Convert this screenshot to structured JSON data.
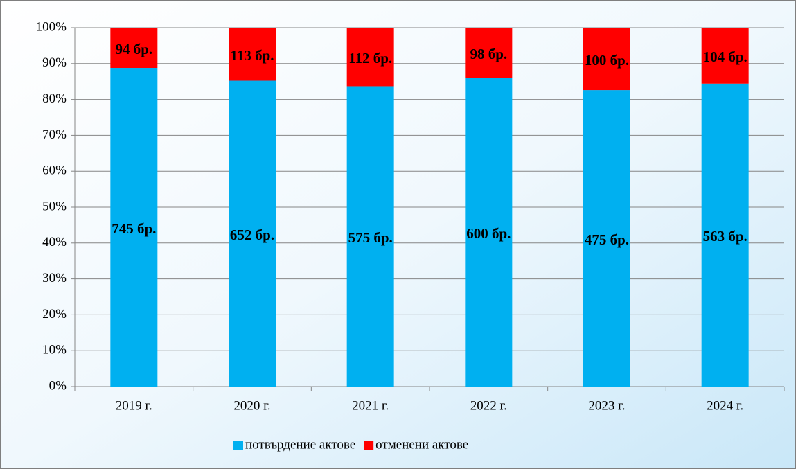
{
  "chart_data": {
    "type": "bar",
    "stacked": "percent",
    "categories": [
      "2019 г.",
      "2020 г.",
      "2021 г.",
      "2022 г.",
      "2023 г.",
      "2024 г."
    ],
    "series": [
      {
        "name": "потвърдение актове",
        "color": "#00b0f0",
        "values": [
          745,
          652,
          575,
          600,
          475,
          563
        ],
        "value_labels": [
          "745 бр.",
          "652 бр.",
          "575 бр.",
          "600 бр.",
          "475 бр.",
          "563 бр."
        ]
      },
      {
        "name": "отменени актове",
        "color": "#ff0000",
        "values": [
          94,
          113,
          112,
          98,
          100,
          104
        ],
        "value_labels": [
          "94 бр.",
          "113 бр.",
          "112 бр.",
          "98 бр.",
          "100 бр.",
          "104 бр."
        ]
      }
    ],
    "ylim": [
      0,
      100
    ],
    "yticks": [
      {
        "value": 0,
        "label": "0%"
      },
      {
        "value": 10,
        "label": "10%"
      },
      {
        "value": 20,
        "label": "20%"
      },
      {
        "value": 30,
        "label": "30%"
      },
      {
        "value": 40,
        "label": "40%"
      },
      {
        "value": 50,
        "label": "50%"
      },
      {
        "value": 60,
        "label": "60%"
      },
      {
        "value": 70,
        "label": "70%"
      },
      {
        "value": 80,
        "label": "80%"
      },
      {
        "value": 90,
        "label": "90%"
      },
      {
        "value": 100,
        "label": "100%"
      }
    ],
    "grid": true,
    "legend": "bottom"
  }
}
